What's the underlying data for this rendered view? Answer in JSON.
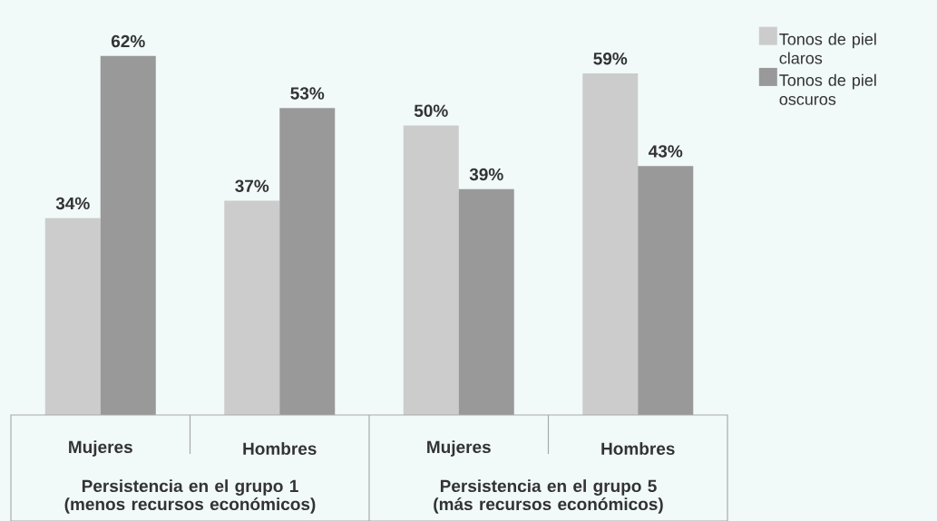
{
  "chart_data": {
    "type": "bar",
    "categories": [
      "Mujeres",
      "Hombres",
      "Mujeres",
      "Hombres"
    ],
    "series": [
      {
        "name": "Tonos de piel claros",
        "color": "#cccccc",
        "values": [
          34,
          37,
          50,
          59
        ],
        "value_labels": [
          "34%",
          "37%",
          "50%",
          "59%"
        ]
      },
      {
        "name": "Tonos de piel oscuros",
        "color": "#999999",
        "values": [
          62,
          53,
          39,
          43
        ],
        "value_labels": [
          "62%",
          "53%",
          "39%",
          "43%"
        ]
      }
    ],
    "annotations": [
      "Persistencia en el grupo 1 (menos recursos económicos)",
      "Persistencia en el grupo 5 (más recursos económicos)"
    ],
    "legend": "top right"
  }
}
